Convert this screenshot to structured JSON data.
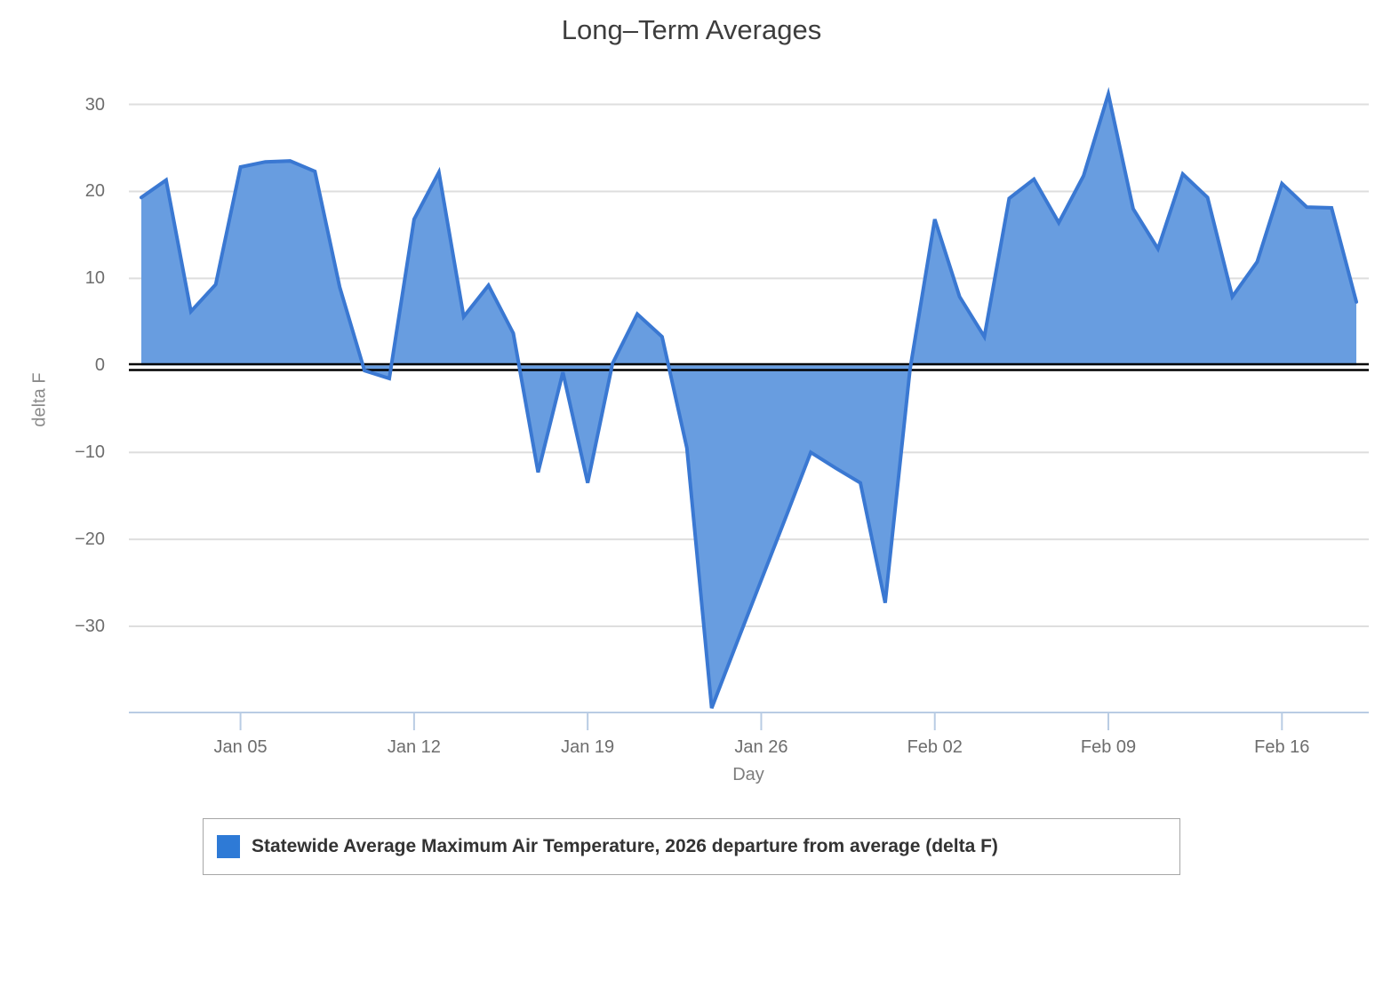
{
  "title": "Long–Term Averages",
  "chart_data": {
    "type": "area",
    "title": "Long–Term Averages",
    "xlabel": "Day",
    "ylabel": "delta F",
    "series_name": "Statewide Average Maximum Air Temperature, 2026 departure from average (delta F)",
    "legend_position": "bottom",
    "grid": "horizontal gridlines at 10-unit steps, black double baseline at 0",
    "ylim": [
      -39.9,
      32.3
    ],
    "baseline": 0,
    "categories": [
      "Jan 01",
      "Jan 02",
      "Jan 03",
      "Jan 04",
      "Jan 05",
      "Jan 06",
      "Jan 07",
      "Jan 08",
      "Jan 09",
      "Jan 10",
      "Jan 11",
      "Jan 12",
      "Jan 13",
      "Jan 14",
      "Jan 15",
      "Jan 16",
      "Jan 17",
      "Jan 18",
      "Jan 19",
      "Jan 20",
      "Jan 21",
      "Jan 22",
      "Jan 23",
      "Jan 24",
      "Jan 25",
      "Jan 26",
      "Jan 27",
      "Jan 28",
      "Jan 29",
      "Jan 30",
      "Jan 31",
      "Feb 01",
      "Feb 02",
      "Feb 03",
      "Feb 04",
      "Feb 05",
      "Feb 06",
      "Feb 07",
      "Feb 08",
      "Feb 09",
      "Feb 10",
      "Feb 11",
      "Feb 12",
      "Feb 13",
      "Feb 14",
      "Feb 15",
      "Feb 16",
      "Feb 17",
      "Feb 18",
      "Feb 19"
    ],
    "values": [
      19.3,
      21.3,
      6.2,
      9.3,
      22.8,
      23.4,
      23.5,
      22.3,
      9.0,
      -0.6,
      -1.5,
      16.8,
      22.2,
      5.6,
      9.2,
      3.7,
      -12.3,
      -0.8,
      -13.5,
      0.2,
      5.9,
      3.3,
      -9.5,
      -39.4,
      -32.0,
      -24.7,
      -17.4,
      -10.0,
      -11.8,
      -13.5,
      -27.3,
      -0.5,
      16.8,
      7.9,
      3.3,
      19.2,
      21.4,
      16.4,
      21.8,
      31.2,
      18.0,
      13.4,
      22.0,
      19.3,
      7.9,
      11.9,
      20.9,
      18.2,
      18.1,
      7.3
    ],
    "yticks": [
      {
        "value": 30,
        "label": "30"
      },
      {
        "value": 20,
        "label": "20"
      },
      {
        "value": 10,
        "label": "10"
      },
      {
        "value": 0,
        "label": "0"
      },
      {
        "value": -10,
        "label": "−10"
      },
      {
        "value": -20,
        "label": "−20"
      },
      {
        "value": -30,
        "label": "−30"
      }
    ],
    "xticks": [
      {
        "index": 4,
        "label": "Jan 05"
      },
      {
        "index": 11,
        "label": "Jan 12"
      },
      {
        "index": 18,
        "label": "Jan 19"
      },
      {
        "index": 25,
        "label": "Jan 26"
      },
      {
        "index": 32,
        "label": "Feb 02"
      },
      {
        "index": 39,
        "label": "Feb 09"
      },
      {
        "index": 46,
        "label": "Feb 16"
      }
    ],
    "colors": {
      "fill": "#689de0",
      "line": "#3a78d2",
      "swatch": "#2e7ad6",
      "grid": "#dedede",
      "zero_line": "#000000",
      "axis": "#b9cce4",
      "title_text": "#3d3d3d",
      "tick_text": "#6d6d6d",
      "axis_title_text": "#8a8a8a"
    }
  }
}
